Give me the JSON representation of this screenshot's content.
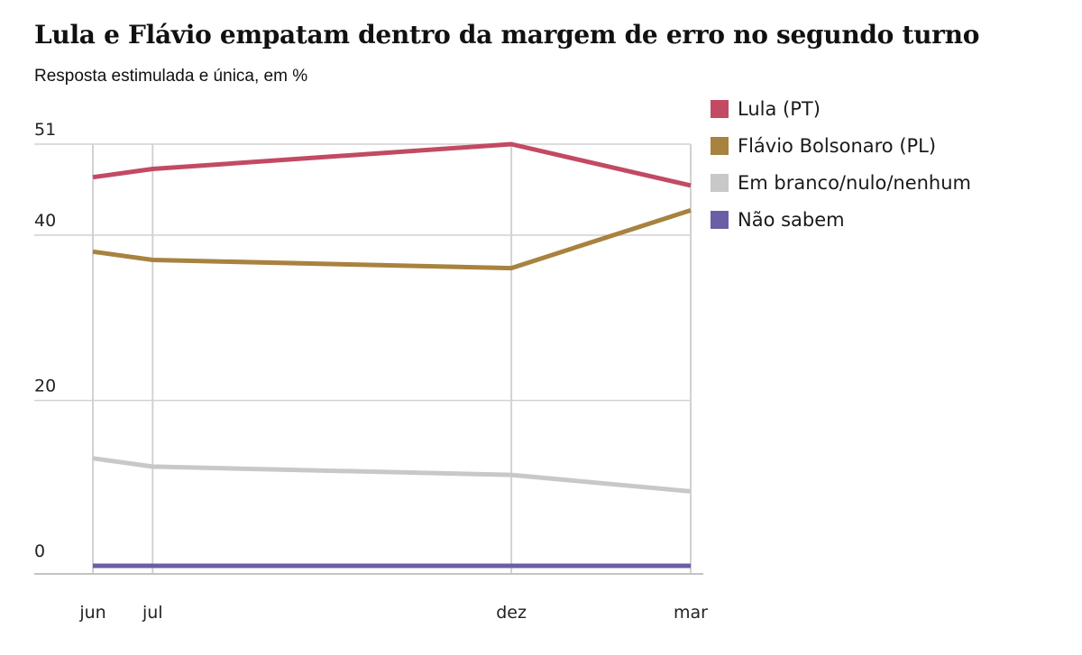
{
  "chart_data": {
    "type": "line",
    "title": "Lula e Flávio empatam dentro da margem de erro no segundo turno",
    "subtitle": "Resposta estimulada e única, em %",
    "categories": [
      "jun",
      "jul",
      "dez",
      "mar"
    ],
    "x": [
      0,
      1,
      7,
      10
    ],
    "y_ticks": [
      0,
      20,
      40,
      51
    ],
    "ylim": [
      0,
      51
    ],
    "legend_position": "top-right",
    "series": [
      {
        "name": "Lula (PT)",
        "color": "#c24a63",
        "values": [
          47,
          48,
          51,
          46
        ]
      },
      {
        "name": "Flávio Bolsonaro (PL)",
        "color": "#a8823f",
        "values": [
          38,
          37,
          36,
          43
        ]
      },
      {
        "name": "Em branco/nulo/nenhum",
        "color": "#c8c8c8",
        "values": [
          13,
          12,
          11,
          9
        ]
      },
      {
        "name": "Não sabem",
        "color": "#6b5ea6",
        "values": [
          0,
          0,
          0,
          0
        ]
      }
    ]
  }
}
